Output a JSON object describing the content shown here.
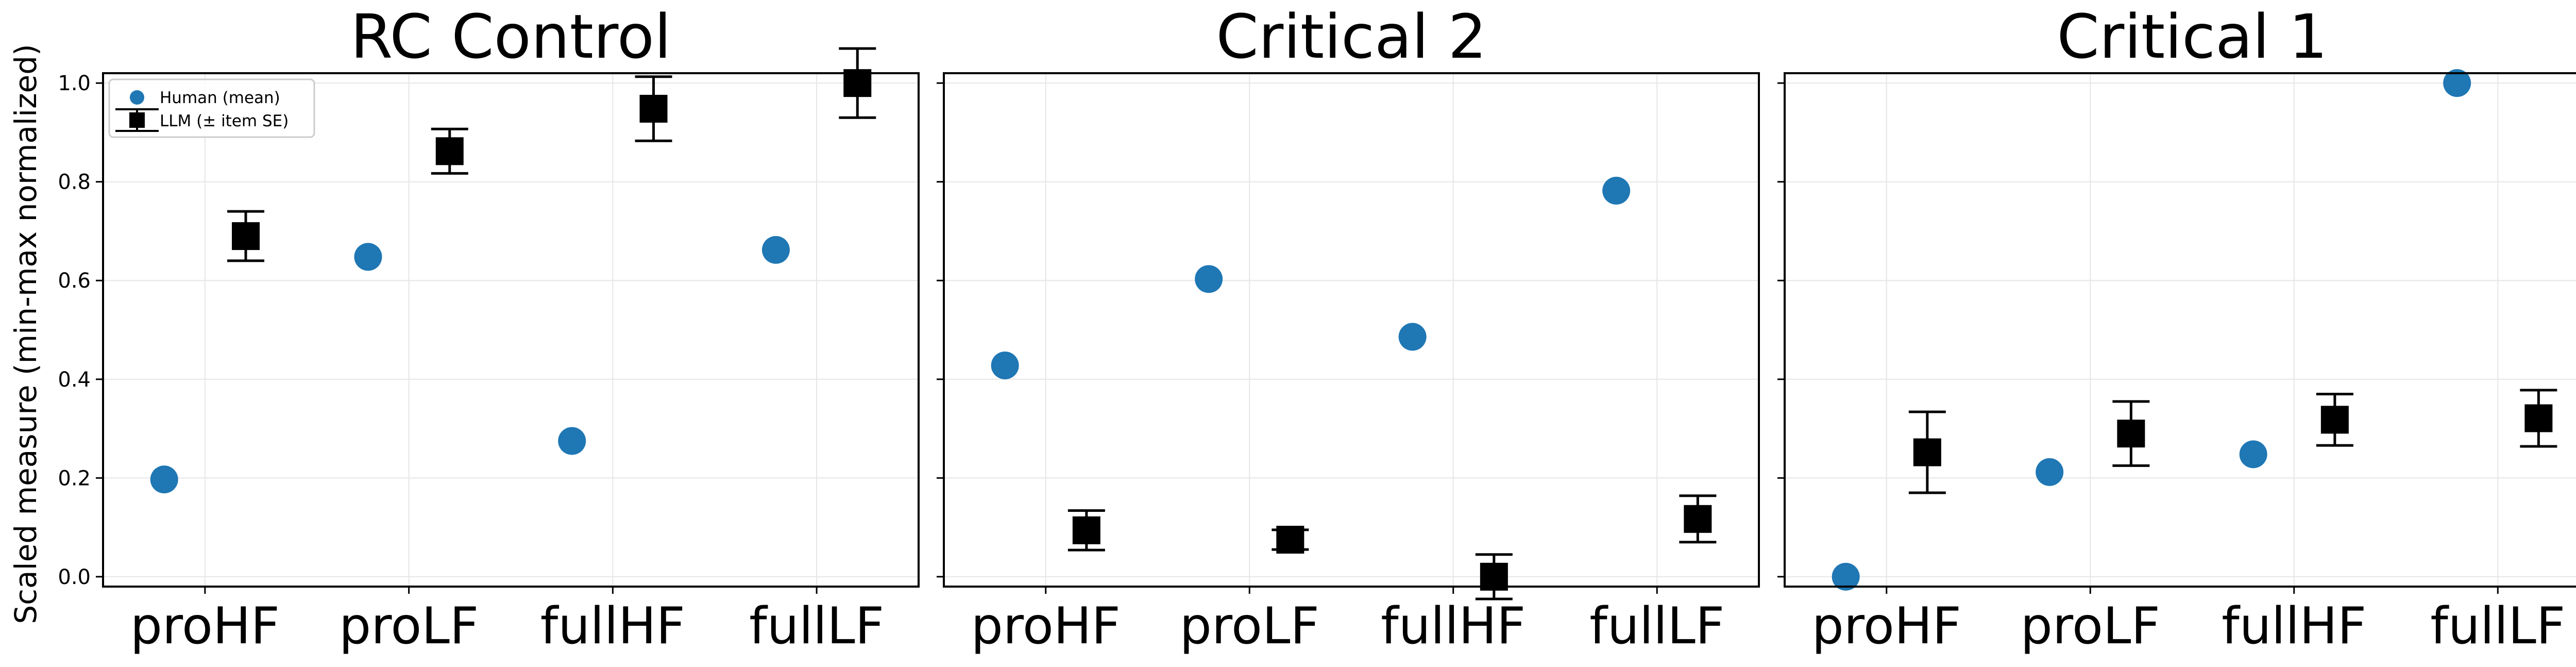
{
  "colors": {
    "human": "#1f77b4",
    "llm": "#000000",
    "grid": "#e6e6e6",
    "axis": "#000000"
  },
  "legend": {
    "human_label": "Human (mean)",
    "llm_label": "LLM (± item SE)",
    "placement": "upper-left of first panel"
  },
  "chart_data": {
    "type": "scatter",
    "ylabel": "Scaled measure (min-max normalized)",
    "ylim": [
      -0.02,
      1.02
    ],
    "yticks": [
      "0.0",
      "0.2",
      "0.4",
      "0.6",
      "0.8",
      "1.0"
    ],
    "grid": true,
    "categories": [
      "proHF",
      "proLF",
      "fullHF",
      "fullLF"
    ],
    "panels": [
      {
        "title": "RC Control",
        "human": [
          0.197,
          0.648,
          0.275,
          0.662
        ],
        "llm": [
          0.69,
          0.862,
          0.948,
          1.0
        ],
        "llm_se": [
          0.05,
          0.045,
          0.065,
          0.07
        ]
      },
      {
        "title": "Critical 2",
        "human": [
          0.428,
          0.603,
          0.486,
          0.782
        ],
        "llm": [
          0.094,
          0.075,
          0.0,
          0.117
        ],
        "llm_se": [
          0.04,
          0.02,
          0.045,
          0.047
        ]
      },
      {
        "title": "Critical 1",
        "human": [
          0.0,
          0.212,
          0.248,
          1.0
        ],
        "llm": [
          0.252,
          0.29,
          0.318,
          0.321
        ],
        "llm_se": [
          0.082,
          0.065,
          0.052,
          0.057
        ]
      }
    ]
  }
}
